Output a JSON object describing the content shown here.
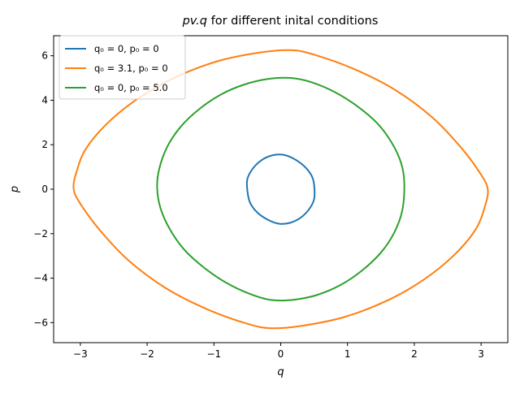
{
  "chart_data": {
    "type": "line",
    "title": {
      "italic": "pv.q",
      "rest": " for different inital conditions"
    },
    "xlabel": "q",
    "ylabel": "p",
    "xlim": [
      -3.4,
      3.4
    ],
    "ylim": [
      -6.9,
      6.9
    ],
    "xticks": [
      -3,
      -2,
      -1,
      0,
      1,
      2,
      3
    ],
    "xtick_labels": [
      "−3",
      "−2",
      "−1",
      "0",
      "1",
      "2",
      "3"
    ],
    "yticks": [
      -6,
      -4,
      -2,
      0,
      2,
      4,
      6
    ],
    "ytick_labels": [
      "−6",
      "−4",
      "−2",
      "0",
      "2",
      "4",
      "6"
    ],
    "grid": false,
    "legend_position": "top-left",
    "series": [
      {
        "name": "q₀ = 0, p₀ = 0",
        "color": "#1f77b4",
        "x": [
          0.5,
          0.46,
          0.35,
          0.19,
          0.03,
          -0.13,
          -0.29,
          -0.42,
          -0.5,
          -0.5,
          -0.46,
          -0.35,
          -0.19,
          -0.03,
          0.13,
          0.29,
          0.42,
          0.5,
          0.5
        ],
        "y": [
          0.2,
          0.62,
          1.04,
          1.38,
          1.55,
          1.52,
          1.3,
          0.92,
          0.45,
          -0.05,
          -0.6,
          -1.05,
          -1.38,
          -1.55,
          -1.52,
          -1.3,
          -0.92,
          -0.45,
          0.2
        ]
      },
      {
        "name": "q₀ = 3.1, p₀ = 0",
        "color": "#ff7f0e",
        "x": [
          3.1,
          3.0,
          2.72,
          2.28,
          1.72,
          1.1,
          0.5,
          0.15,
          -0.3,
          -0.95,
          -1.6,
          -2.15,
          -2.6,
          -2.92,
          -3.06,
          -3.1,
          -3.0,
          -2.72,
          -2.28,
          -1.72,
          -1.1,
          -0.5,
          -0.15,
          0.3,
          0.95,
          1.6,
          2.15,
          2.6,
          2.92,
          3.06,
          3.1
        ],
        "y": [
          0.0,
          0.65,
          1.8,
          3.2,
          4.45,
          5.4,
          6.05,
          6.25,
          6.15,
          5.75,
          5.0,
          4.05,
          2.95,
          1.8,
          0.75,
          0.0,
          -0.65,
          -1.8,
          -3.2,
          -4.45,
          -5.4,
          -6.05,
          -6.25,
          -6.15,
          -5.75,
          -5.0,
          -4.05,
          -2.95,
          -1.8,
          -0.75,
          0.0
        ]
      },
      {
        "name": "q₀ = 0, p₀ = 5.0",
        "color": "#2ca02c",
        "x": [
          1.85,
          1.8,
          1.66,
          1.45,
          1.16,
          0.82,
          0.47,
          0.15,
          -0.2,
          -0.55,
          -0.9,
          -1.22,
          -1.5,
          -1.7,
          -1.82,
          -1.85,
          -1.8,
          -1.66,
          -1.45,
          -1.16,
          -0.82,
          -0.47,
          -0.15,
          0.2,
          0.55,
          0.9,
          1.22,
          1.5,
          1.7,
          1.82,
          1.85
        ],
        "y": [
          0.3,
          1.2,
          2.1,
          2.95,
          3.7,
          4.35,
          4.8,
          5.0,
          4.95,
          4.7,
          4.25,
          3.6,
          2.8,
          1.9,
          0.9,
          0.05,
          -0.85,
          -1.8,
          -2.7,
          -3.5,
          -4.2,
          -4.7,
          -4.98,
          -4.97,
          -4.75,
          -4.3,
          -3.65,
          -2.85,
          -1.95,
          -0.95,
          0.3
        ]
      }
    ]
  }
}
